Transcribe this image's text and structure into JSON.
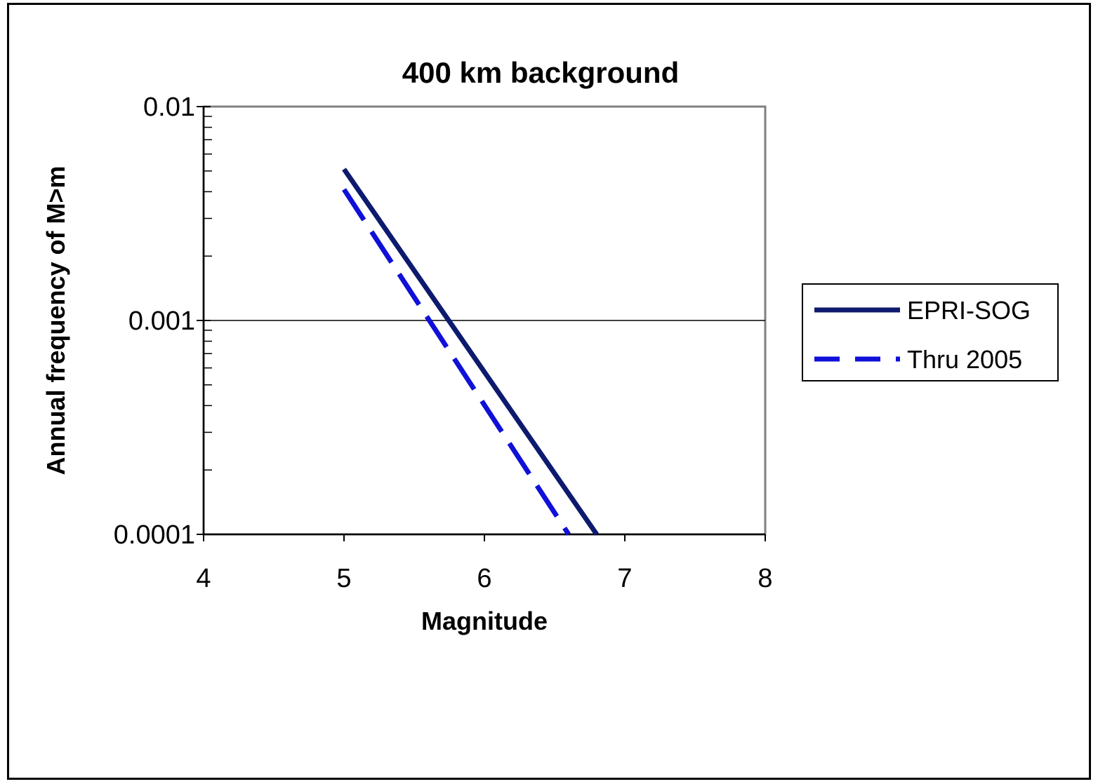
{
  "chart_data": {
    "type": "line",
    "title": "400 km background",
    "xlabel": "Magnitude",
    "ylabel": "Annual frequency of M>m",
    "xlim": [
      4,
      8
    ],
    "ylim": [
      0.0001,
      0.01
    ],
    "y_scale": "log",
    "x_ticks": [
      "4",
      "5",
      "6",
      "7",
      "8"
    ],
    "y_ticks": [
      "0.01",
      "0.001",
      "0.0001"
    ],
    "grid": "horizontal major gridlines",
    "legend_position": "right",
    "series": [
      {
        "name": "EPRI-SOG",
        "style": "solid",
        "color": "#0d1a6e",
        "x": [
          5.0,
          6.8
        ],
        "y": [
          0.0051,
          0.0001
        ]
      },
      {
        "name": "Thru 2005",
        "style": "dashed",
        "color": "#1010d8",
        "x": [
          5.0,
          6.6
        ],
        "y": [
          0.0041,
          0.0001
        ]
      }
    ]
  }
}
